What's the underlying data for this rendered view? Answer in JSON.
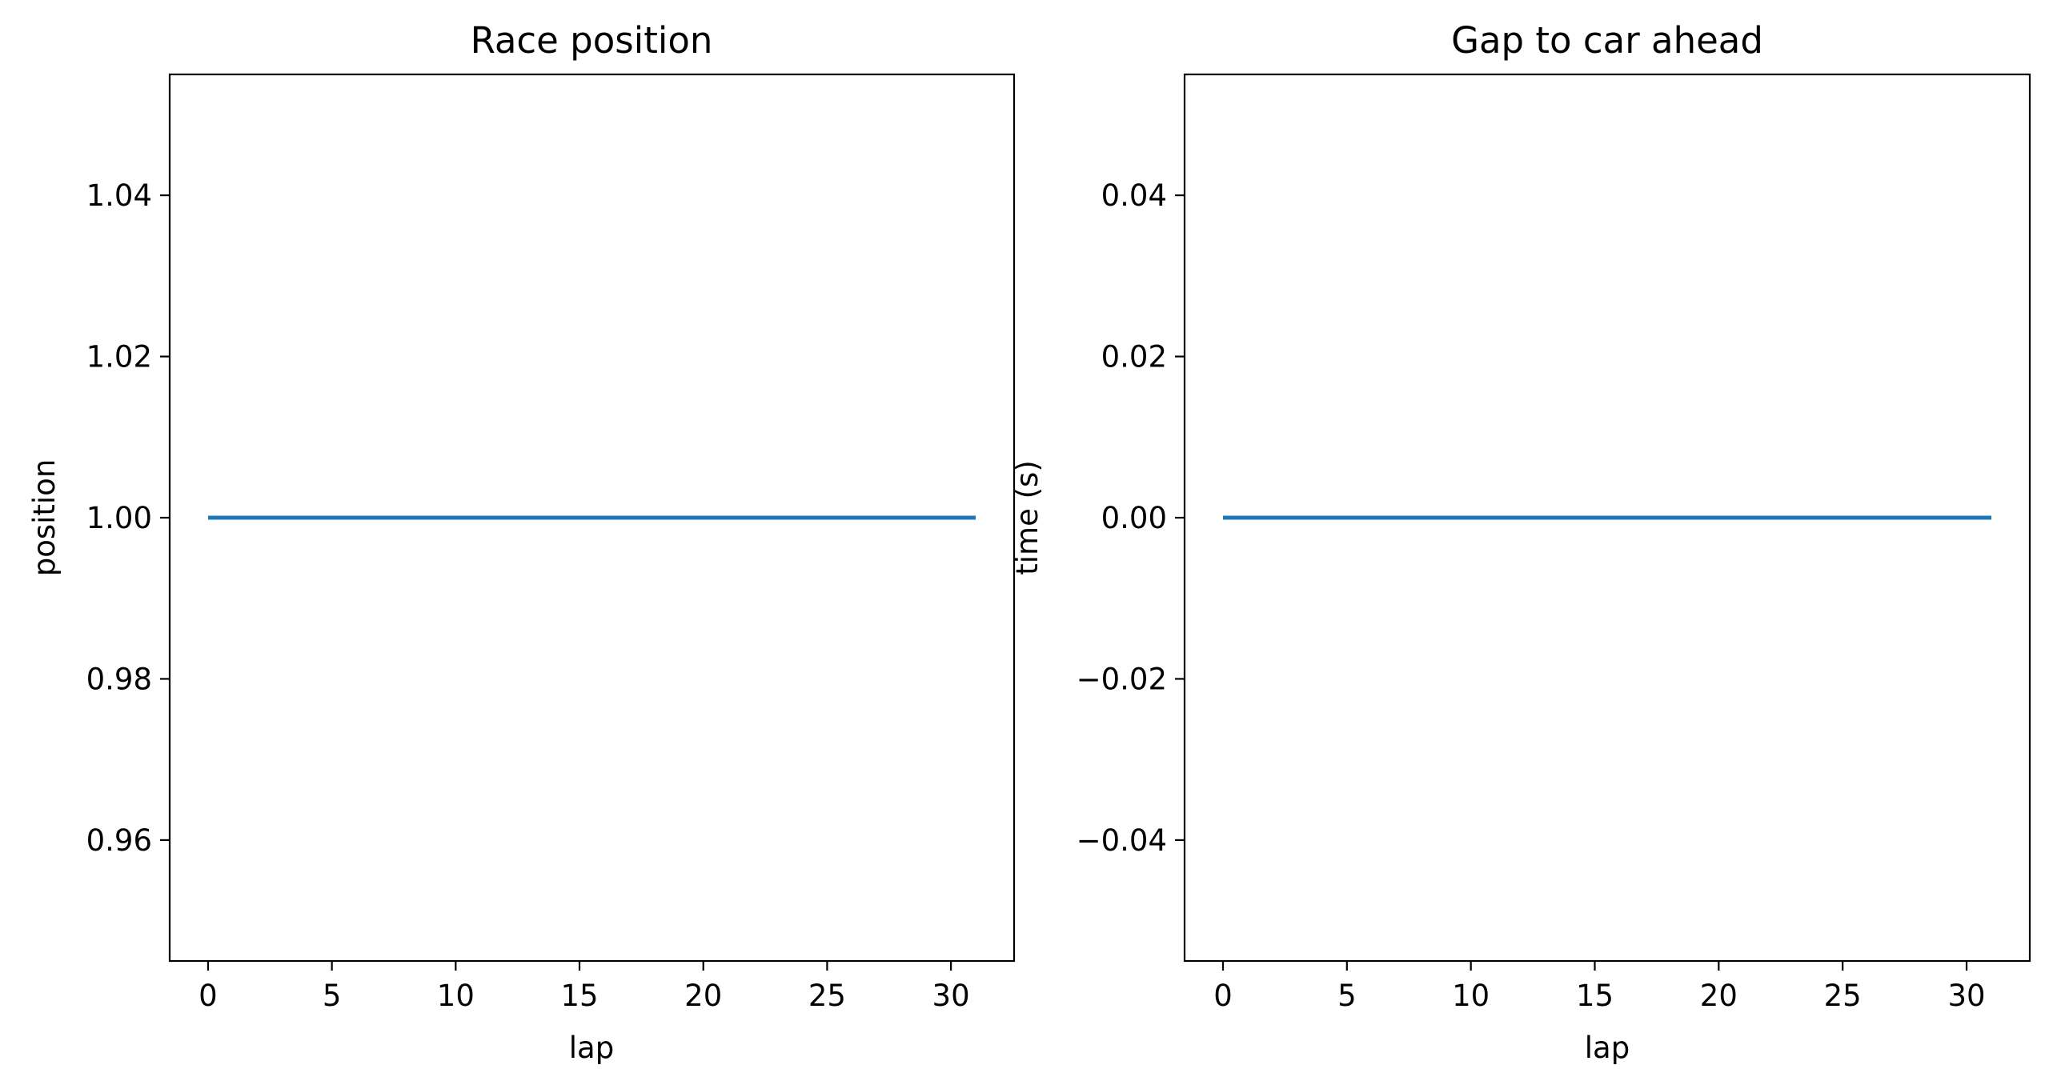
{
  "chart_data": [
    {
      "type": "line",
      "title": "Race position",
      "xlabel": "lap",
      "ylabel": "position",
      "xlim": [
        -1.55,
        32.55
      ],
      "ylim": [
        0.945,
        1.055
      ],
      "xticks": [
        0,
        5,
        10,
        15,
        20,
        25,
        30
      ],
      "xtick_labels": [
        "0",
        "5",
        "10",
        "15",
        "20",
        "25",
        "30"
      ],
      "yticks": [
        0.96,
        0.98,
        1.0,
        1.02,
        1.04
      ],
      "ytick_labels": [
        "0.96",
        "0.98",
        "1.00",
        "1.02",
        "1.04"
      ],
      "grid": false,
      "series": [
        {
          "color": "#1f77b4",
          "x": [
            0,
            31
          ],
          "y": [
            1.0,
            1.0
          ]
        }
      ]
    },
    {
      "type": "line",
      "title": "Gap to car ahead",
      "xlabel": "lap",
      "ylabel": "time (s)",
      "xlim": [
        -1.55,
        32.55
      ],
      "ylim": [
        -0.055,
        0.055
      ],
      "xticks": [
        0,
        5,
        10,
        15,
        20,
        25,
        30
      ],
      "xtick_labels": [
        "0",
        "5",
        "10",
        "15",
        "20",
        "25",
        "30"
      ],
      "yticks": [
        -0.04,
        -0.02,
        0.0,
        0.02,
        0.04
      ],
      "ytick_labels": [
        "−0.04",
        "−0.02",
        "0.00",
        "0.02",
        "0.04"
      ],
      "grid": false,
      "series": [
        {
          "color": "#1f77b4",
          "x": [
            0,
            31
          ],
          "y": [
            0.0,
            0.0
          ]
        }
      ]
    }
  ]
}
